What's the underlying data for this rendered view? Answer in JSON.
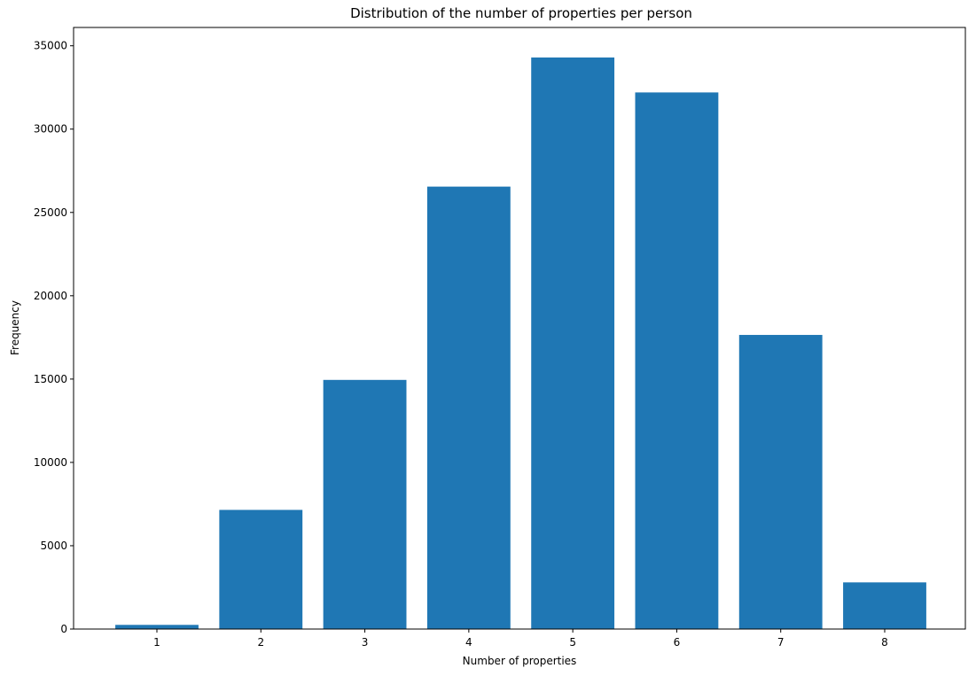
{
  "chart_data": {
    "type": "bar",
    "title": "Distribution of the number of properties per person",
    "xlabel": "Number of properties",
    "ylabel": "Frequency",
    "categories": [
      "1",
      "2",
      "3",
      "4",
      "5",
      "6",
      "7",
      "8"
    ],
    "values": [
      250,
      7150,
      14950,
      26550,
      34300,
      32200,
      17650,
      2800
    ],
    "ylim": [
      0,
      36100
    ],
    "yticks": [
      0,
      5000,
      10000,
      15000,
      20000,
      25000,
      30000,
      35000
    ],
    "ytick_labels": [
      "0",
      "5000",
      "10000",
      "15000",
      "20000",
      "25000",
      "30000",
      "35000"
    ],
    "bar_color": "#1f77b4",
    "grid": false,
    "legend": "none"
  }
}
